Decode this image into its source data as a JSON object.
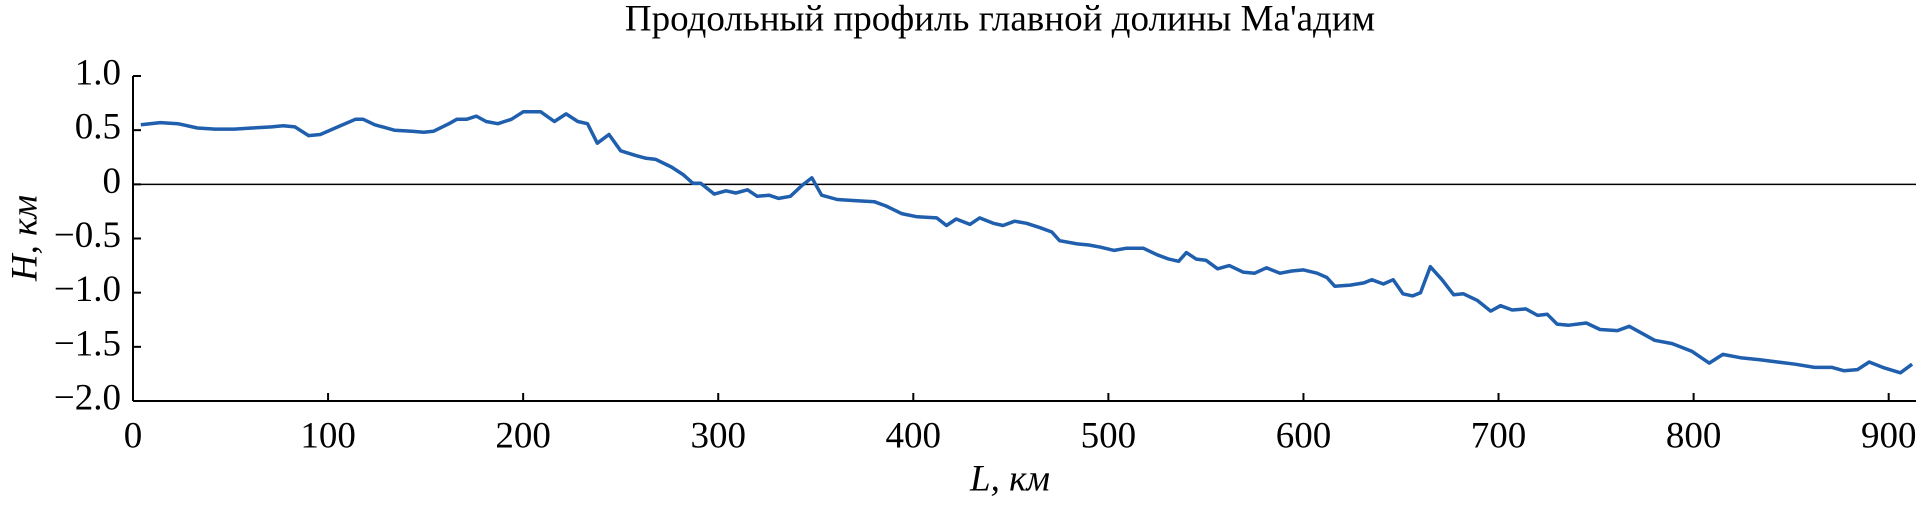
{
  "chart_data": {
    "type": "line",
    "title": "Продольный профиль главной долины Ма'адим",
    "x_label": "L, км",
    "y_label": "H, км",
    "x": [
      4,
      14,
      23,
      33,
      42,
      52,
      61,
      71,
      77,
      83,
      90,
      96,
      105,
      114,
      118,
      124,
      134,
      143,
      149,
      154,
      162,
      166,
      171,
      176,
      181,
      187,
      194,
      200,
      209,
      216,
      222,
      228,
      233,
      238,
      244,
      250,
      257,
      263,
      268,
      276,
      282,
      287,
      291,
      298,
      304,
      309,
      315,
      320,
      326,
      331,
      337,
      343,
      348,
      353,
      361,
      370,
      380,
      386,
      394,
      402,
      412,
      417,
      422,
      429,
      434,
      441,
      446,
      452,
      458,
      465,
      471,
      475,
      484,
      490,
      496,
      503,
      509,
      518,
      525,
      531,
      536,
      540,
      545,
      550,
      556,
      562,
      569,
      575,
      581,
      588,
      594,
      600,
      607,
      612,
      616,
      624,
      631,
      635,
      641,
      646,
      651,
      656,
      660,
      665,
      671,
      677,
      682,
      689,
      696,
      701,
      707,
      714,
      720,
      725,
      730,
      736,
      745,
      752,
      761,
      767,
      774,
      780,
      789,
      799,
      808,
      815,
      824,
      834,
      843,
      852,
      862,
      871,
      877,
      884,
      890,
      897,
      906,
      912
    ],
    "series": [
      {
        "name": "H",
        "color": "#1f5fad",
        "values": [
          0.55,
          0.57,
          0.56,
          0.52,
          0.51,
          0.51,
          0.52,
          0.53,
          0.54,
          0.53,
          0.45,
          0.46,
          0.53,
          0.6,
          0.6,
          0.55,
          0.5,
          0.49,
          0.48,
          0.49,
          0.56,
          0.6,
          0.6,
          0.63,
          0.58,
          0.56,
          0.6,
          0.67,
          0.67,
          0.58,
          0.65,
          0.58,
          0.56,
          0.38,
          0.46,
          0.31,
          0.27,
          0.24,
          0.23,
          0.16,
          0.09,
          0.01,
          0.01,
          -0.09,
          -0.06,
          -0.08,
          -0.05,
          -0.11,
          -0.1,
          -0.13,
          -0.11,
          -0.01,
          0.06,
          -0.1,
          -0.14,
          -0.15,
          -0.16,
          -0.2,
          -0.27,
          -0.3,
          -0.31,
          -0.38,
          -0.32,
          -0.37,
          -0.31,
          -0.36,
          -0.38,
          -0.34,
          -0.36,
          -0.4,
          -0.44,
          -0.52,
          -0.55,
          -0.56,
          -0.58,
          -0.61,
          -0.59,
          -0.59,
          -0.65,
          -0.69,
          -0.71,
          -0.63,
          -0.69,
          -0.7,
          -0.78,
          -0.75,
          -0.81,
          -0.82,
          -0.77,
          -0.82,
          -0.8,
          -0.79,
          -0.82,
          -0.86,
          -0.94,
          -0.93,
          -0.91,
          -0.88,
          -0.92,
          -0.88,
          -1.01,
          -1.03,
          -1.0,
          -0.76,
          -0.88,
          -1.02,
          -1.01,
          -1.07,
          -1.17,
          -1.12,
          -1.16,
          -1.15,
          -1.21,
          -1.2,
          -1.29,
          -1.3,
          -1.28,
          -1.34,
          -1.35,
          -1.31,
          -1.38,
          -1.44,
          -1.47,
          -1.54,
          -1.65,
          -1.57,
          -1.6,
          -1.62,
          -1.64,
          -1.66,
          -1.69,
          -1.69,
          -1.72,
          -1.71,
          -1.64,
          -1.69,
          -1.74,
          -1.66
        ]
      }
    ],
    "xlim": [
      0,
      914
    ],
    "ylim": [
      -2,
      1
    ],
    "xticks": [
      0,
      100,
      200,
      300,
      400,
      500,
      600,
      700,
      800,
      900
    ],
    "yticks": [
      {
        "value": 1,
        "label": "1.0"
      },
      0.5,
      0,
      {
        "value": -0.5,
        "label": "−0.5"
      },
      {
        "value": -1,
        "label": "−1.0"
      },
      {
        "value": -1.5,
        "label": "−1.5"
      },
      {
        "value": -2,
        "label": "−2.0"
      }
    ],
    "hlines": [
      0
    ]
  }
}
